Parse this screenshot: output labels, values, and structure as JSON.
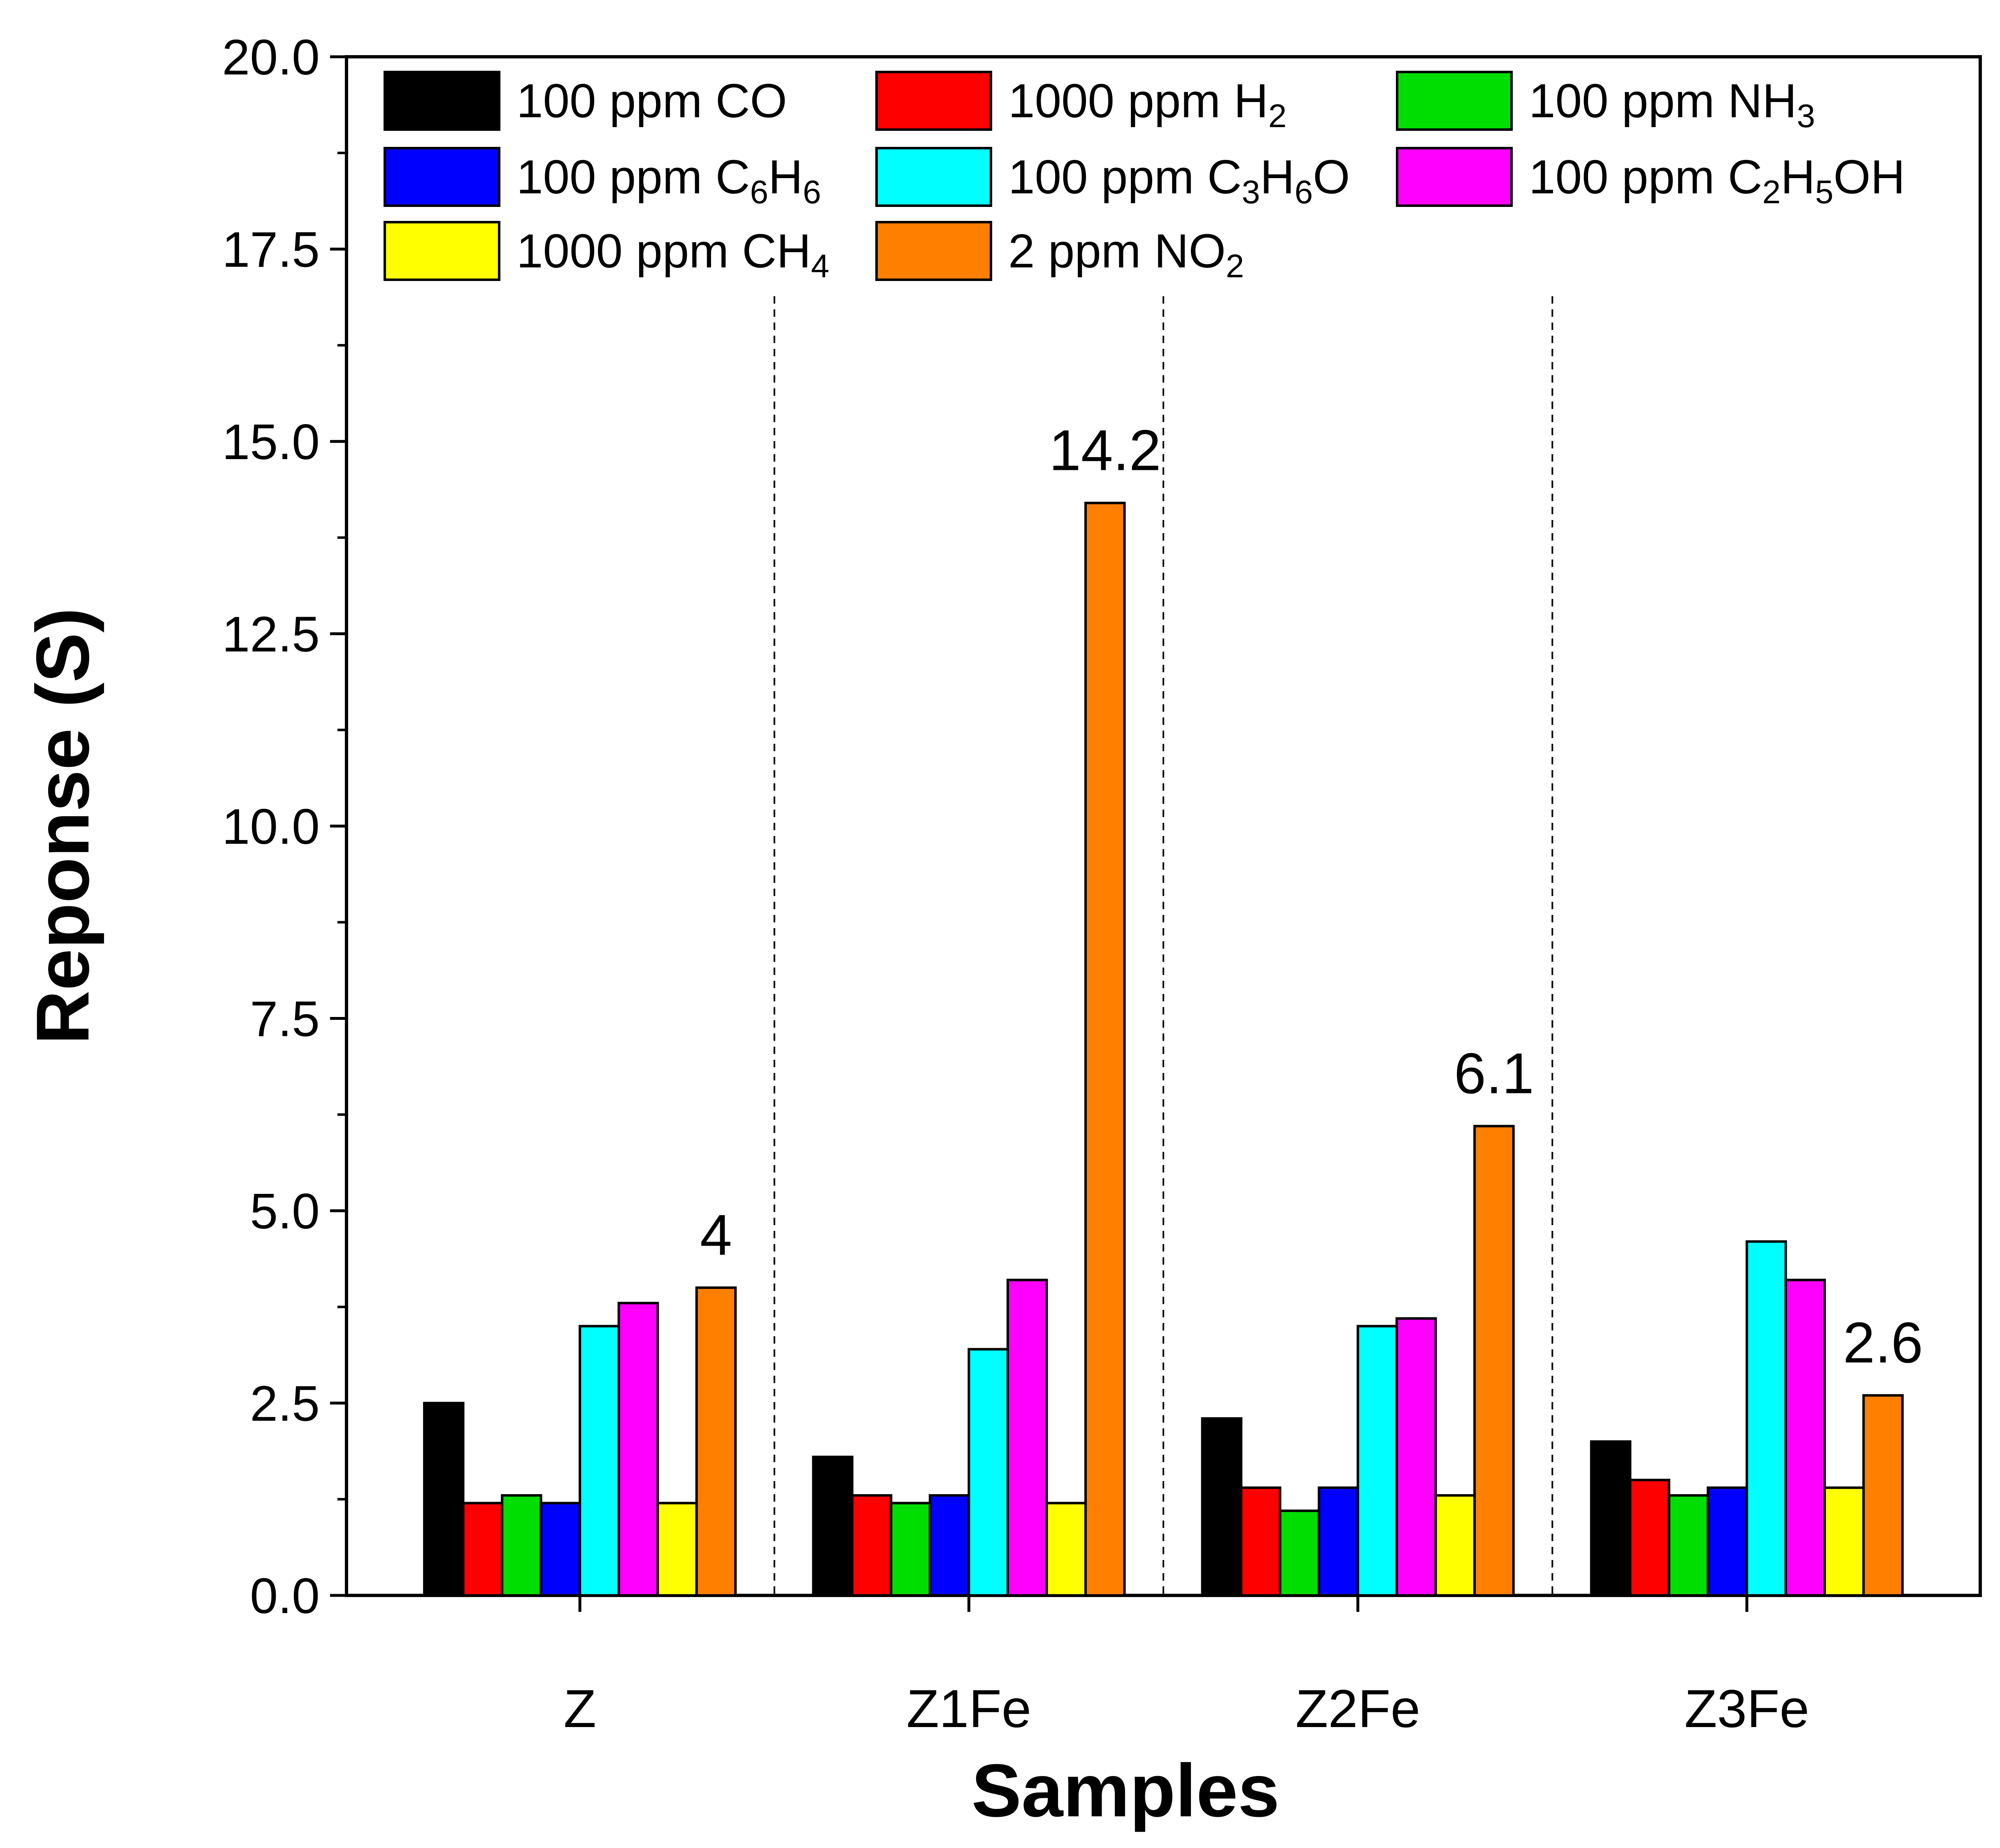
{
  "chart_data": {
    "type": "bar",
    "xlabel": "Samples",
    "ylabel": "Reponse (S)",
    "ylim": [
      0,
      20
    ],
    "yticks": [
      "0.0",
      "2.5",
      "5.0",
      "7.5",
      "10.0",
      "12.5",
      "15.0",
      "17.5",
      "20.0"
    ],
    "grid": false,
    "legend_position": "top",
    "categories": [
      "Z",
      "Z1Fe",
      "Z2Fe",
      "Z3Fe"
    ],
    "series": [
      {
        "name_parts": [
          "100 ppm CO"
        ],
        "color": "#000000",
        "values": [
          2.5,
          1.8,
          2.3,
          2.0
        ]
      },
      {
        "name_parts": [
          "1000 ppm H",
          "2",
          ""
        ],
        "color": "#ff0000",
        "values": [
          1.2,
          1.3,
          1.4,
          1.5
        ]
      },
      {
        "name_parts": [
          "100 ppm NH",
          "3",
          ""
        ],
        "color": "#00dd00",
        "values": [
          1.3,
          1.2,
          1.1,
          1.3
        ]
      },
      {
        "name_parts": [
          "100 ppm C",
          "6",
          "H",
          "6",
          ""
        ],
        "color": "#0000ff",
        "values": [
          1.2,
          1.3,
          1.4,
          1.4
        ]
      },
      {
        "name_parts": [
          "100 ppm C",
          "3",
          "H",
          "6",
          "O"
        ],
        "color": "#00ffff",
        "values": [
          3.5,
          3.2,
          3.5,
          4.6
        ]
      },
      {
        "name_parts": [
          "100 ppm C",
          "2",
          "H",
          "5",
          "OH"
        ],
        "color": "#ff00ff",
        "values": [
          3.8,
          4.1,
          3.6,
          4.1
        ]
      },
      {
        "name_parts": [
          "1000 ppm CH",
          "4",
          ""
        ],
        "color": "#ffff00",
        "values": [
          1.2,
          1.2,
          1.3,
          1.4
        ]
      },
      {
        "name_parts": [
          "2 ppm NO",
          "2",
          ""
        ],
        "color": "#ff7f00",
        "values": [
          4.0,
          14.2,
          6.1,
          2.6
        ]
      }
    ],
    "annotations": [
      "4",
      "14.2",
      "6.1",
      "2.6"
    ]
  }
}
